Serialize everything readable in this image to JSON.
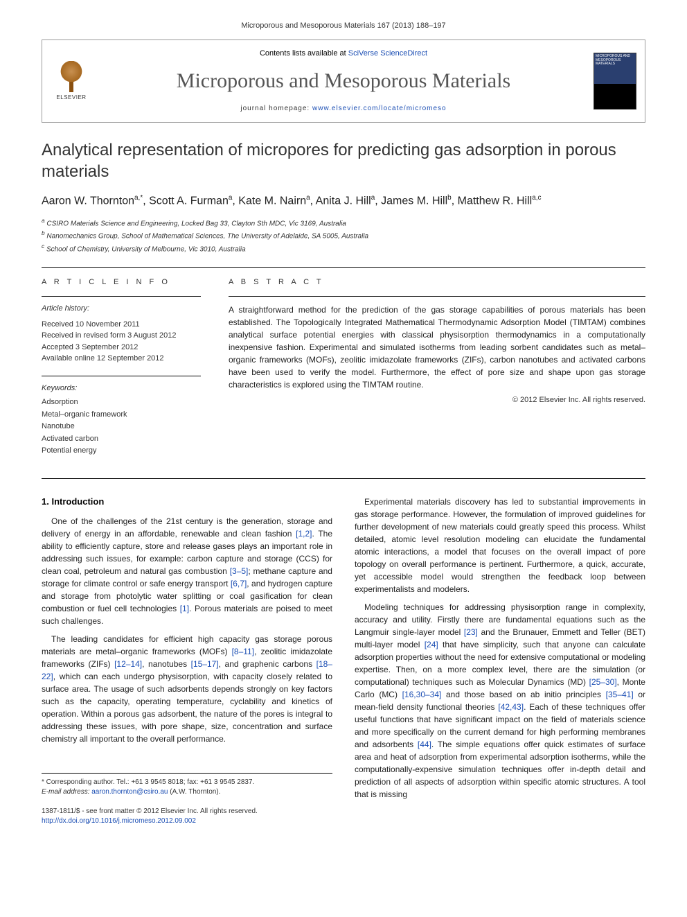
{
  "header": {
    "citation": "Microporous and Mesoporous Materials 167 (2013) 188–197",
    "contents_line": "Contents lists available at ",
    "sd_name": "SciVerse ScienceDirect",
    "journal_name": "Microporous and Mesoporous Materials",
    "homepage_label": "journal homepage: ",
    "homepage_url": "www.elsevier.com/locate/micromeso",
    "publisher": "ELSEVIER",
    "cover_text": "MICROPOROUS AND MESOPOROUS MATERIALS"
  },
  "title": "Analytical representation of micropores for predicting gas adsorption in porous materials",
  "authors_html": "Aaron W. Thornton",
  "authors": [
    {
      "name": "Aaron W. Thornton",
      "sup": "a,*"
    },
    {
      "name": "Scott A. Furman",
      "sup": "a"
    },
    {
      "name": "Kate M. Nairn",
      "sup": "a"
    },
    {
      "name": "Anita J. Hill",
      "sup": "a"
    },
    {
      "name": "James M. Hill",
      "sup": "b"
    },
    {
      "name": "Matthew R. Hill",
      "sup": "a,c"
    }
  ],
  "affiliations": [
    "a CSIRO Materials Science and Engineering, Locked Bag 33, Clayton Sth MDC, Vic 3169, Australia",
    "b Nanomechanics Group, School of Mathematical Sciences, The University of Adelaide, SA 5005, Australia",
    "c School of Chemistry, University of Melbourne, Vic 3010, Australia"
  ],
  "article_info_label": "A R T I C L E   I N F O",
  "abstract_label": "A B S T R A C T",
  "history_label": "Article history:",
  "history": [
    "Received 10 November 2011",
    "Received in revised form 3 August 2012",
    "Accepted 3 September 2012",
    "Available online 12 September 2012"
  ],
  "keywords_label": "Keywords:",
  "keywords": [
    "Adsorption",
    "Metal–organic framework",
    "Nanotube",
    "Activated carbon",
    "Potential energy"
  ],
  "abstract_text": "A straightforward method for the prediction of the gas storage capabilities of porous materials has been established. The Topologically Integrated Mathematical Thermodynamic Adsorption Model (TIMTAM) combines analytical surface potential energies with classical physisorption thermodynamics in a computationally inexpensive fashion. Experimental and simulated isotherms from leading sorbent candidates such as metal–organic frameworks (MOFs), zeolitic imidazolate frameworks (ZIFs), carbon nanotubes and activated carbons have been used to verify the model. Furthermore, the effect of pore size and shape upon gas storage characteristics is explored using the TIMTAM routine.",
  "copyright": "© 2012 Elsevier Inc. All rights reserved.",
  "intro_heading": "1. Introduction",
  "body": {
    "p1": "One of the challenges of the 21st century is the generation, storage and delivery of energy in an affordable, renewable and clean fashion [1,2]. The ability to efficiently capture, store and release gases plays an important role in addressing such issues, for example: carbon capture and storage (CCS) for clean coal, petroleum and natural gas combustion [3–5]; methane capture and storage for climate control or safe energy transport [6,7], and hydrogen capture and storage from photolytic water splitting or coal gasification for clean combustion or fuel cell technologies [1]. Porous materials are poised to meet such challenges.",
    "p2": "The leading candidates for efficient high capacity gas storage porous materials are metal–organic frameworks (MOFs) [8–11], zeolitic imidazolate frameworks (ZIFs) [12–14], nanotubes [15–17], and graphenic carbons [18–22], which can each undergo physisorption, with capacity closely related to surface area. The usage of such adsorbents depends strongly on key factors such as the capacity, operating temperature, cyclability and kinetics of operation. Within a porous gas adsorbent, the nature of the pores is integral to addressing these issues, with pore shape, size, concentration and surface chemistry all important to the overall performance.",
    "p3": "Experimental materials discovery has led to substantial improvements in gas storage performance. However, the formulation of improved guidelines for further development of new materials could greatly speed this process. Whilst detailed, atomic level resolution modeling can elucidate the fundamental atomic interactions, a model that focuses on the overall impact of pore topology on overall performance is pertinent. Furthermore, a quick, accurate, yet accessible model would strengthen the feedback loop between experimentalists and modelers.",
    "p4": "Modeling techniques for addressing physisorption range in complexity, accuracy and utility. Firstly there are fundamental equations such as the Langmuir single-layer model [23] and the Brunauer, Emmett and Teller (BET) multi-layer model [24] that have simplicity, such that anyone can calculate adsorption properties without the need for extensive computational or modeling expertise. Then, on a more complex level, there are the simulation (or computational) techniques such as Molecular Dynamics (MD) [25–30], Monte Carlo (MC) [16,30–34] and those based on ab initio principles [35–41] or mean-field density functional theories [42,43]. Each of these techniques offer useful functions that have significant impact on the field of materials science and more specifically on the current demand for high performing membranes and adsorbents [44]. The simple equations offer quick estimates of surface area and heat of adsorption from experimental adsorption isotherms, while the computationally-expensive simulation techniques offer in-depth detail and prediction of all aspects of adsorption within specific atomic structures. A tool that is missing"
  },
  "corresponding": {
    "line": "* Corresponding author. Tel.: +61 3 9545 8018; fax: +61 3 9545 2837.",
    "email_label": "E-mail address: ",
    "email": "aaron.thornton@csiro.au",
    "author_paren": " (A.W. Thornton)."
  },
  "footer": {
    "issn_line": "1387-1811/$ - see front matter © 2012 Elsevier Inc. All rights reserved.",
    "doi": "http://dx.doi.org/10.1016/j.micromeso.2012.09.002"
  },
  "colors": {
    "link": "#1a4db3",
    "text": "#222222",
    "muted": "#333333",
    "journal": "#555555"
  }
}
